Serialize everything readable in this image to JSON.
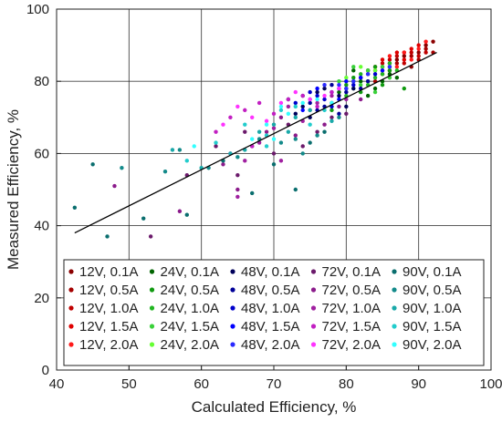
{
  "chart_data": {
    "type": "scatter",
    "title": "",
    "xlabel": "Calculated Efficiency, %",
    "ylabel": "Measured Efficiency, %",
    "xlim": [
      40,
      100
    ],
    "ylim": [
      0,
      100
    ],
    "xticks": [
      40,
      50,
      60,
      70,
      80,
      90,
      100
    ],
    "yticks": [
      0,
      20,
      40,
      60,
      80,
      100
    ],
    "grid": true,
    "legend_placement": "bottom-right, 4 columns",
    "fit_line": {
      "x": [
        42.5,
        92.5
      ],
      "y": [
        38,
        88
      ],
      "color": "#000000"
    },
    "series": [
      {
        "name": "12V, 0.1A",
        "color": "#8b0000",
        "points": [
          [
            84,
            83
          ],
          [
            86,
            85
          ],
          [
            88,
            87
          ],
          [
            90,
            88
          ],
          [
            91,
            90
          ],
          [
            92,
            91
          ],
          [
            87,
            86
          ],
          [
            89,
            84
          ],
          [
            85,
            82
          ],
          [
            83,
            82
          ]
        ]
      },
      {
        "name": "12V, 0.5A",
        "color": "#a50000",
        "points": [
          [
            85,
            84
          ],
          [
            87,
            85
          ],
          [
            89,
            87
          ],
          [
            90,
            86
          ],
          [
            88,
            88
          ],
          [
            86,
            83
          ],
          [
            91,
            89
          ],
          [
            84,
            80
          ],
          [
            82,
            81
          ],
          [
            92,
            88
          ]
        ]
      },
      {
        "name": "12V, 1.0A",
        "color": "#c00000",
        "points": [
          [
            86,
            86
          ],
          [
            88,
            85
          ],
          [
            89,
            88
          ],
          [
            87,
            87
          ],
          [
            85,
            85
          ],
          [
            90,
            87
          ],
          [
            83,
            83
          ],
          [
            91,
            88
          ]
        ]
      },
      {
        "name": "12V, 1.5A",
        "color": "#e00000",
        "points": [
          [
            87,
            88
          ],
          [
            89,
            89
          ],
          [
            88,
            86
          ],
          [
            86,
            84
          ],
          [
            90,
            90
          ],
          [
            84,
            84
          ],
          [
            85,
            86
          ]
        ]
      },
      {
        "name": "12V, 2.0A",
        "color": "#ff1a1a",
        "points": [
          [
            88,
            88
          ],
          [
            90,
            89
          ],
          [
            86,
            87
          ],
          [
            87,
            84
          ],
          [
            89,
            86
          ],
          [
            85,
            83
          ],
          [
            91,
            91
          ]
        ]
      },
      {
        "name": "24V, 0.1A",
        "color": "#006400",
        "points": [
          [
            80,
            78
          ],
          [
            82,
            80
          ],
          [
            84,
            78
          ],
          [
            86,
            82
          ],
          [
            81,
            83
          ],
          [
            83,
            76
          ],
          [
            85,
            80
          ],
          [
            87,
            81
          ],
          [
            79,
            77
          ]
        ]
      },
      {
        "name": "24V, 0.5A",
        "color": "#109a10",
        "points": [
          [
            81,
            81
          ],
          [
            83,
            83
          ],
          [
            85,
            79
          ],
          [
            82,
            77
          ],
          [
            84,
            84
          ],
          [
            86,
            83
          ],
          [
            80,
            79
          ],
          [
            78,
            72
          ],
          [
            88,
            78
          ]
        ]
      },
      {
        "name": "24V, 1.0A",
        "color": "#22b622",
        "points": [
          [
            82,
            82
          ],
          [
            84,
            81
          ],
          [
            86,
            85
          ],
          [
            83,
            79
          ],
          [
            85,
            82
          ],
          [
            81,
            80
          ],
          [
            87,
            83
          ],
          [
            80,
            76
          ]
        ]
      },
      {
        "name": "24V, 1.5A",
        "color": "#3ad13a",
        "points": [
          [
            83,
            83
          ],
          [
            81,
            84
          ],
          [
            85,
            84
          ],
          [
            84,
            77
          ],
          [
            82,
            79
          ],
          [
            86,
            81
          ],
          [
            79,
            80
          ]
        ]
      },
      {
        "name": "24V, 2.0A",
        "color": "#66ff33",
        "points": [
          [
            82,
            84
          ],
          [
            84,
            83
          ],
          [
            80,
            81
          ],
          [
            83,
            80
          ],
          [
            86,
            84
          ],
          [
            81,
            78
          ]
        ]
      },
      {
        "name": "48V, 0.1A",
        "color": "#00005a",
        "points": [
          [
            72,
            75
          ],
          [
            74,
            73
          ],
          [
            76,
            77
          ],
          [
            78,
            74
          ],
          [
            79,
            76
          ],
          [
            80,
            73
          ],
          [
            75,
            70
          ],
          [
            77,
            78
          ],
          [
            81,
            78
          ],
          [
            73,
            71
          ]
        ]
      },
      {
        "name": "48V, 0.5A",
        "color": "#000098",
        "points": [
          [
            74,
            76
          ],
          [
            76,
            72
          ],
          [
            78,
            79
          ],
          [
            80,
            77
          ],
          [
            82,
            78
          ],
          [
            75,
            74
          ],
          [
            79,
            71
          ],
          [
            77,
            73
          ],
          [
            83,
            80
          ]
        ]
      },
      {
        "name": "48V, 1.0A",
        "color": "#0000cc",
        "points": [
          [
            73,
            74
          ],
          [
            75,
            77
          ],
          [
            77,
            75
          ],
          [
            79,
            78
          ],
          [
            81,
            79
          ],
          [
            76,
            76
          ],
          [
            78,
            73
          ],
          [
            84,
            82
          ]
        ]
      },
      {
        "name": "48V, 1.5A",
        "color": "#0000ff",
        "points": [
          [
            76,
            78
          ],
          [
            78,
            77
          ],
          [
            80,
            80
          ],
          [
            82,
            81
          ],
          [
            74,
            72
          ],
          [
            79,
            75
          ],
          [
            85,
            83
          ]
        ]
      },
      {
        "name": "48V, 2.0A",
        "color": "#2a2aff",
        "points": [
          [
            77,
            79
          ],
          [
            79,
            79
          ],
          [
            81,
            80
          ],
          [
            83,
            82
          ],
          [
            75,
            75
          ],
          [
            80,
            78
          ],
          [
            86,
            84
          ]
        ]
      },
      {
        "name": "72V, 0.1A",
        "color": "#6b1a6b",
        "points": [
          [
            53,
            37
          ],
          [
            58,
            54
          ],
          [
            62,
            62
          ],
          [
            66,
            66
          ],
          [
            68,
            64
          ],
          [
            72,
            68
          ],
          [
            74,
            62
          ],
          [
            76,
            66
          ],
          [
            78,
            70
          ],
          [
            80,
            71
          ],
          [
            65,
            54
          ],
          [
            70,
            60
          ]
        ]
      },
      {
        "name": "72V, 0.5A",
        "color": "#8b1b8b",
        "points": [
          [
            48,
            51
          ],
          [
            57,
            44
          ],
          [
            63,
            57
          ],
          [
            65,
            50
          ],
          [
            67,
            62
          ],
          [
            71,
            70
          ],
          [
            73,
            65
          ],
          [
            75,
            72
          ],
          [
            77,
            68
          ],
          [
            79,
            73
          ],
          [
            82,
            75
          ],
          [
            69,
            66
          ]
        ]
      },
      {
        "name": "72V, 1.0A",
        "color": "#a020a0",
        "points": [
          [
            64,
            60
          ],
          [
            66,
            58
          ],
          [
            68,
            63
          ],
          [
            70,
            67
          ],
          [
            72,
            73
          ],
          [
            74,
            69
          ],
          [
            76,
            74
          ],
          [
            78,
            76
          ],
          [
            65,
            48
          ],
          [
            71,
            58
          ],
          [
            80,
            75
          ]
        ]
      },
      {
        "name": "72V, 1.5A",
        "color": "#c21fc2",
        "points": [
          [
            62,
            66
          ],
          [
            64,
            70
          ],
          [
            66,
            72
          ],
          [
            68,
            74
          ],
          [
            70,
            71
          ],
          [
            72,
            75
          ],
          [
            74,
            76
          ],
          [
            76,
            73
          ],
          [
            67,
            62
          ],
          [
            78,
            77
          ]
        ]
      },
      {
        "name": "72V, 2.0A",
        "color": "#ff33ff",
        "points": [
          [
            63,
            68
          ],
          [
            65,
            73
          ],
          [
            67,
            70
          ],
          [
            69,
            69
          ],
          [
            71,
            74
          ],
          [
            73,
            77
          ],
          [
            75,
            75
          ],
          [
            77,
            76
          ],
          [
            79,
            78
          ]
        ]
      },
      {
        "name": "90V, 0.1A",
        "color": "#0a6e6e",
        "points": [
          [
            42.5,
            45
          ],
          [
            45,
            57
          ],
          [
            47,
            37
          ],
          [
            52,
            42
          ],
          [
            58,
            43
          ],
          [
            63,
            58
          ],
          [
            67,
            49
          ],
          [
            70,
            57
          ],
          [
            73,
            50
          ],
          [
            75,
            63
          ],
          [
            77,
            66
          ]
        ]
      },
      {
        "name": "90V, 0.5A",
        "color": "#138a8a",
        "points": [
          [
            49,
            56
          ],
          [
            55,
            55
          ],
          [
            57,
            61
          ],
          [
            61,
            56
          ],
          [
            65,
            59
          ],
          [
            68,
            64
          ],
          [
            71,
            63
          ],
          [
            73,
            64
          ],
          [
            76,
            65
          ],
          [
            74,
            60
          ],
          [
            79,
            70
          ]
        ]
      },
      {
        "name": "90V, 1.0A",
        "color": "#1aa9a9",
        "points": [
          [
            56,
            61
          ],
          [
            60,
            56
          ],
          [
            64,
            60
          ],
          [
            66,
            61
          ],
          [
            68,
            66
          ],
          [
            70,
            68
          ],
          [
            72,
            66
          ],
          [
            75,
            72
          ],
          [
            78,
            69
          ],
          [
            73,
            70
          ]
        ]
      },
      {
        "name": "90V, 1.5A",
        "color": "#22cccc",
        "points": [
          [
            58,
            58
          ],
          [
            62,
            63
          ],
          [
            66,
            68
          ],
          [
            69,
            65
          ],
          [
            71,
            72
          ],
          [
            73,
            73
          ],
          [
            75,
            68
          ],
          [
            77,
            72
          ],
          [
            69,
            62
          ]
        ]
      },
      {
        "name": "90V, 2.0A",
        "color": "#33ffff",
        "points": [
          [
            59,
            62
          ],
          [
            67,
            64
          ],
          [
            69,
            68
          ],
          [
            71,
            73
          ],
          [
            72,
            71
          ],
          [
            74,
            74
          ],
          [
            76,
            75
          ],
          [
            70,
            64
          ],
          [
            78,
            74
          ]
        ]
      }
    ]
  }
}
